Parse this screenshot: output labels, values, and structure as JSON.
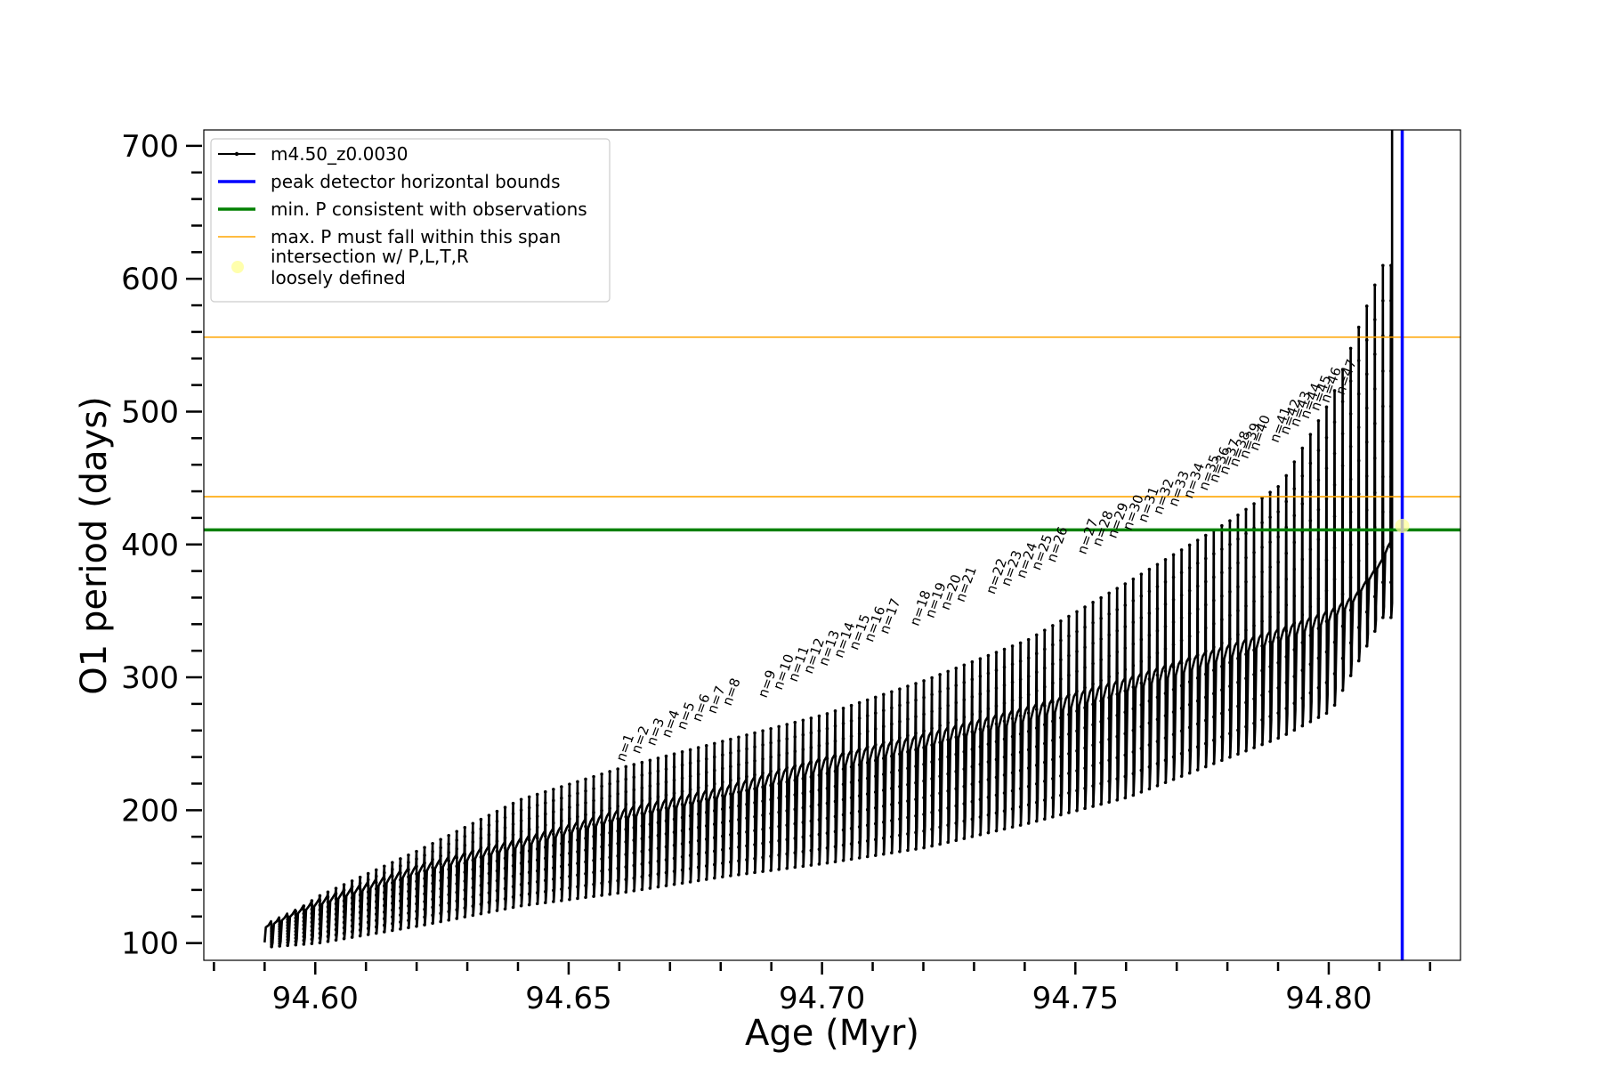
{
  "chart_data": {
    "type": "line",
    "title": "",
    "xlabel": "Age (Myr)",
    "ylabel": "O1 period (days)",
    "xlim": [
      94.578,
      94.826
    ],
    "ylim": [
      87,
      712
    ],
    "xticks": [
      94.6,
      94.65,
      94.7,
      94.75,
      94.8
    ],
    "xtick_labels": [
      "94.60",
      "94.65",
      "94.70",
      "94.75",
      "94.80"
    ],
    "yticks": [
      100,
      200,
      300,
      400,
      500,
      600,
      700
    ],
    "ytick_labels": [
      "100",
      "200",
      "300",
      "400",
      "500",
      "600",
      "700"
    ],
    "legend": {
      "placement": "upper-left",
      "entries": [
        {
          "label": "m4.50_z0.0030",
          "color": "#000000",
          "style": "line-dot"
        },
        {
          "label": "peak detector horizontal bounds",
          "color": "#0000ff",
          "style": "line"
        },
        {
          "label": "min. P consistent with observations",
          "color": "#008000",
          "style": "line"
        },
        {
          "label": "max. P must fall within this span",
          "color": "#ffa500",
          "style": "line"
        },
        {
          "label": "intersection w/ P,L,T,R\nloosely defined",
          "color": "#ffff99",
          "style": "marker"
        }
      ]
    },
    "reference_lines": {
      "horizontal": [
        {
          "name": "min. P consistent with observations",
          "y": 411,
          "color": "#008000"
        },
        {
          "name": "max. P span lower",
          "y": 436,
          "color": "#ffa500"
        },
        {
          "name": "max. P span upper",
          "y": 556,
          "color": "#ffa500"
        }
      ],
      "vertical": [
        {
          "name": "peak detector horizontal bounds",
          "x": 94.8145,
          "color": "#0000ff"
        }
      ]
    },
    "series": [
      {
        "name": "m4.50_z0.0030",
        "color": "#000000",
        "x_start": 94.59,
        "x_end": 94.8125,
        "baseline_knots_x": [
          94.59,
          94.6,
          94.62,
          94.64,
          94.66,
          94.68,
          94.7,
          94.72,
          94.74,
          94.76,
          94.78,
          94.79,
          94.8,
          94.805,
          94.81,
          94.8125
        ],
        "baseline_knots_y": [
          112,
          130,
          156,
          176,
          198,
          215,
          237,
          255,
          275,
          297,
          322,
          334,
          348,
          360,
          385,
          405
        ],
        "min_knots_x": [
          94.59,
          94.6,
          94.62,
          94.64,
          94.66,
          94.68,
          94.7,
          94.72,
          94.74,
          94.76,
          94.78,
          94.79,
          94.8,
          94.81
        ],
        "min_knots_y": [
          97,
          100,
          113,
          128,
          138,
          150,
          160,
          172,
          190,
          210,
          240,
          255,
          275,
          345
        ],
        "spike_knots_x": [
          94.59,
          94.6,
          94.62,
          94.64,
          94.66,
          94.68,
          94.7,
          94.72,
          94.74,
          94.76,
          94.78,
          94.79,
          94.8,
          94.806,
          94.81
        ],
        "spike_knots_y": [
          110,
          135,
          170,
          208,
          232,
          252,
          272,
          298,
          328,
          372,
          418,
          445,
          510,
          570,
          610
        ],
        "final_spike_y": 700
      }
    ],
    "pulse_annotations": {
      "labels": [
        "n=1",
        "n=2",
        "n=3",
        "n=4",
        "n=5",
        "n=6",
        "n=7",
        "n=8",
        "n=9",
        "n=10",
        "n=11",
        "n=12",
        "n=13",
        "n=14",
        "n=15",
        "n=16",
        "n=17",
        "n=18",
        "n=19",
        "n=20",
        "n=21",
        "n=22",
        "n=23",
        "n=24",
        "n=25",
        "n=26",
        "n=27",
        "n=28",
        "n=29",
        "n=30",
        "n=31",
        "n=32",
        "n=33",
        "n=34",
        "n=35",
        "n=36",
        "n=37",
        "n=38",
        "n=39",
        "n=40",
        "n=41",
        "n=42",
        "n=43",
        "n=44",
        "n=45",
        "n=46",
        "n=47"
      ],
      "x": [
        94.661,
        94.664,
        94.667,
        94.67,
        94.673,
        94.676,
        94.679,
        94.682,
        94.689,
        94.692,
        94.695,
        94.698,
        94.701,
        94.704,
        94.707,
        94.71,
        94.713,
        94.719,
        94.722,
        94.725,
        94.728,
        94.734,
        94.737,
        94.74,
        94.743,
        94.746,
        94.752,
        94.755,
        94.758,
        94.761,
        94.764,
        94.767,
        94.77,
        94.773,
        94.776,
        94.778,
        94.78,
        94.782,
        94.784,
        94.786,
        94.79,
        94.792,
        94.794,
        94.796,
        94.798,
        94.8,
        94.803
      ],
      "y": [
        236,
        242,
        248,
        254,
        260,
        266,
        272,
        278,
        284,
        290,
        296,
        302,
        308,
        314,
        320,
        326,
        332,
        338,
        344,
        350,
        356,
        362,
        368,
        374,
        380,
        386,
        392,
        398,
        404,
        410,
        416,
        422,
        428,
        434,
        440,
        446,
        452,
        458,
        464,
        470,
        476,
        482,
        488,
        494,
        500,
        506,
        512
      ]
    },
    "intersection_point": {
      "x": 94.8145,
      "y": 414,
      "color": "#ffff99"
    }
  }
}
